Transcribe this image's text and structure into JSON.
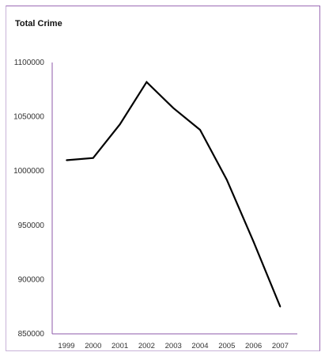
{
  "chart_data": {
    "type": "line",
    "title": "Total Crime",
    "xlabel": "",
    "ylabel": "",
    "categories": [
      "1999",
      "2000",
      "2001",
      "2002",
      "2003",
      "2004",
      "2005",
      "2006",
      "2007"
    ],
    "series": [
      {
        "values": [
          1010000,
          1012000,
          1043000,
          1082000,
          1058000,
          1038000,
          992000,
          935000,
          875000
        ]
      }
    ],
    "y_ticks": [
      "1100000",
      "1050000",
      "1000000",
      "950000",
      "900000",
      "850000"
    ],
    "ylim": [
      850000,
      1100000
    ],
    "grid": false,
    "legend": "none",
    "colors": {
      "line": "#000000",
      "axis": "#8e5aa8",
      "frame": "#9b6bb5"
    }
  }
}
